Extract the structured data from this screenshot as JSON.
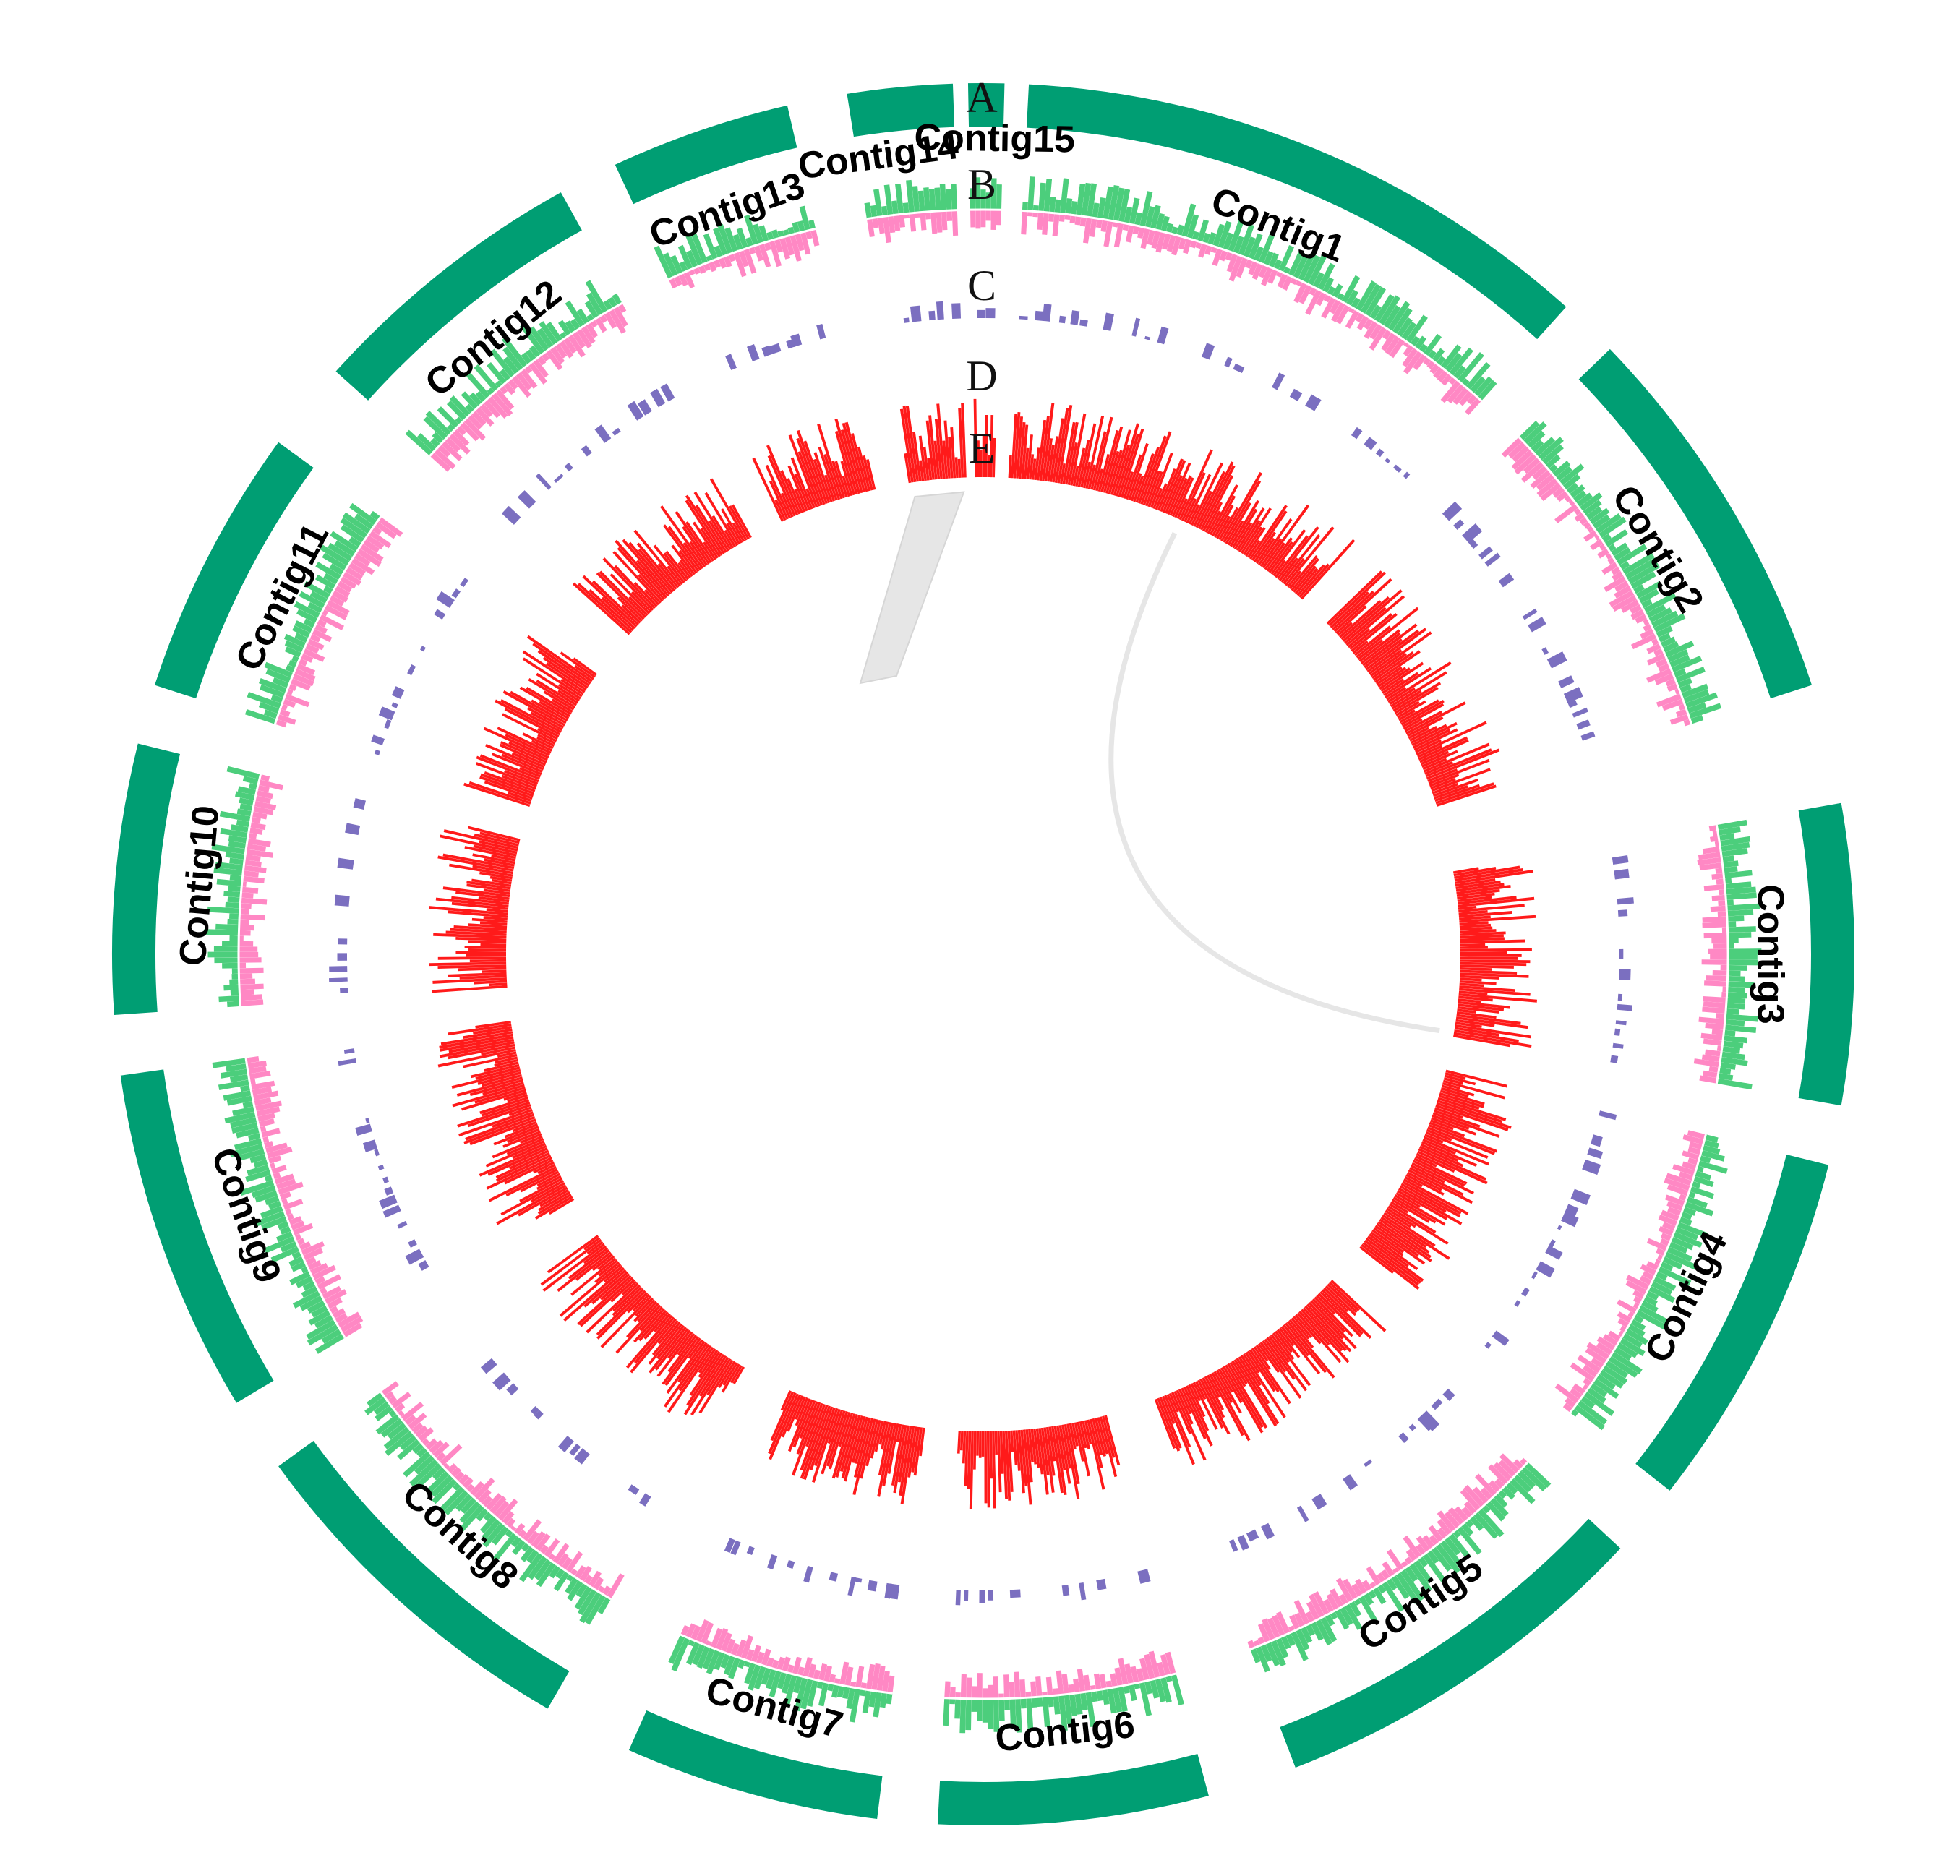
{
  "track_letters": [
    "A",
    "B",
    "C",
    "D",
    "E"
  ],
  "colors": {
    "ideogram": "#009e73",
    "gc_skew_positive": "#4cce7c",
    "gc_skew_negative": "#ff88c4",
    "track_c": "#7b6fc0",
    "track_d": "#ff1a1a",
    "links": "#e6e6e6"
  },
  "contigs": [
    {
      "name": "Contig1"
    },
    {
      "name": "Contig2"
    },
    {
      "name": "Contig3"
    },
    {
      "name": "Contig4"
    },
    {
      "name": "Contig5"
    },
    {
      "name": "Contig6"
    },
    {
      "name": "Contig7"
    },
    {
      "name": "Contig8"
    },
    {
      "name": "Contig9"
    },
    {
      "name": "Contig10"
    },
    {
      "name": "Contig11"
    },
    {
      "name": "Contig12"
    },
    {
      "name": "Contig13"
    },
    {
      "name": "Contig14"
    },
    {
      "name": "Contig15"
    }
  ],
  "links": [
    {
      "from": "Contig1",
      "to": "Contig3"
    },
    {
      "from": "Contig14",
      "to": "Contig14"
    }
  ]
}
